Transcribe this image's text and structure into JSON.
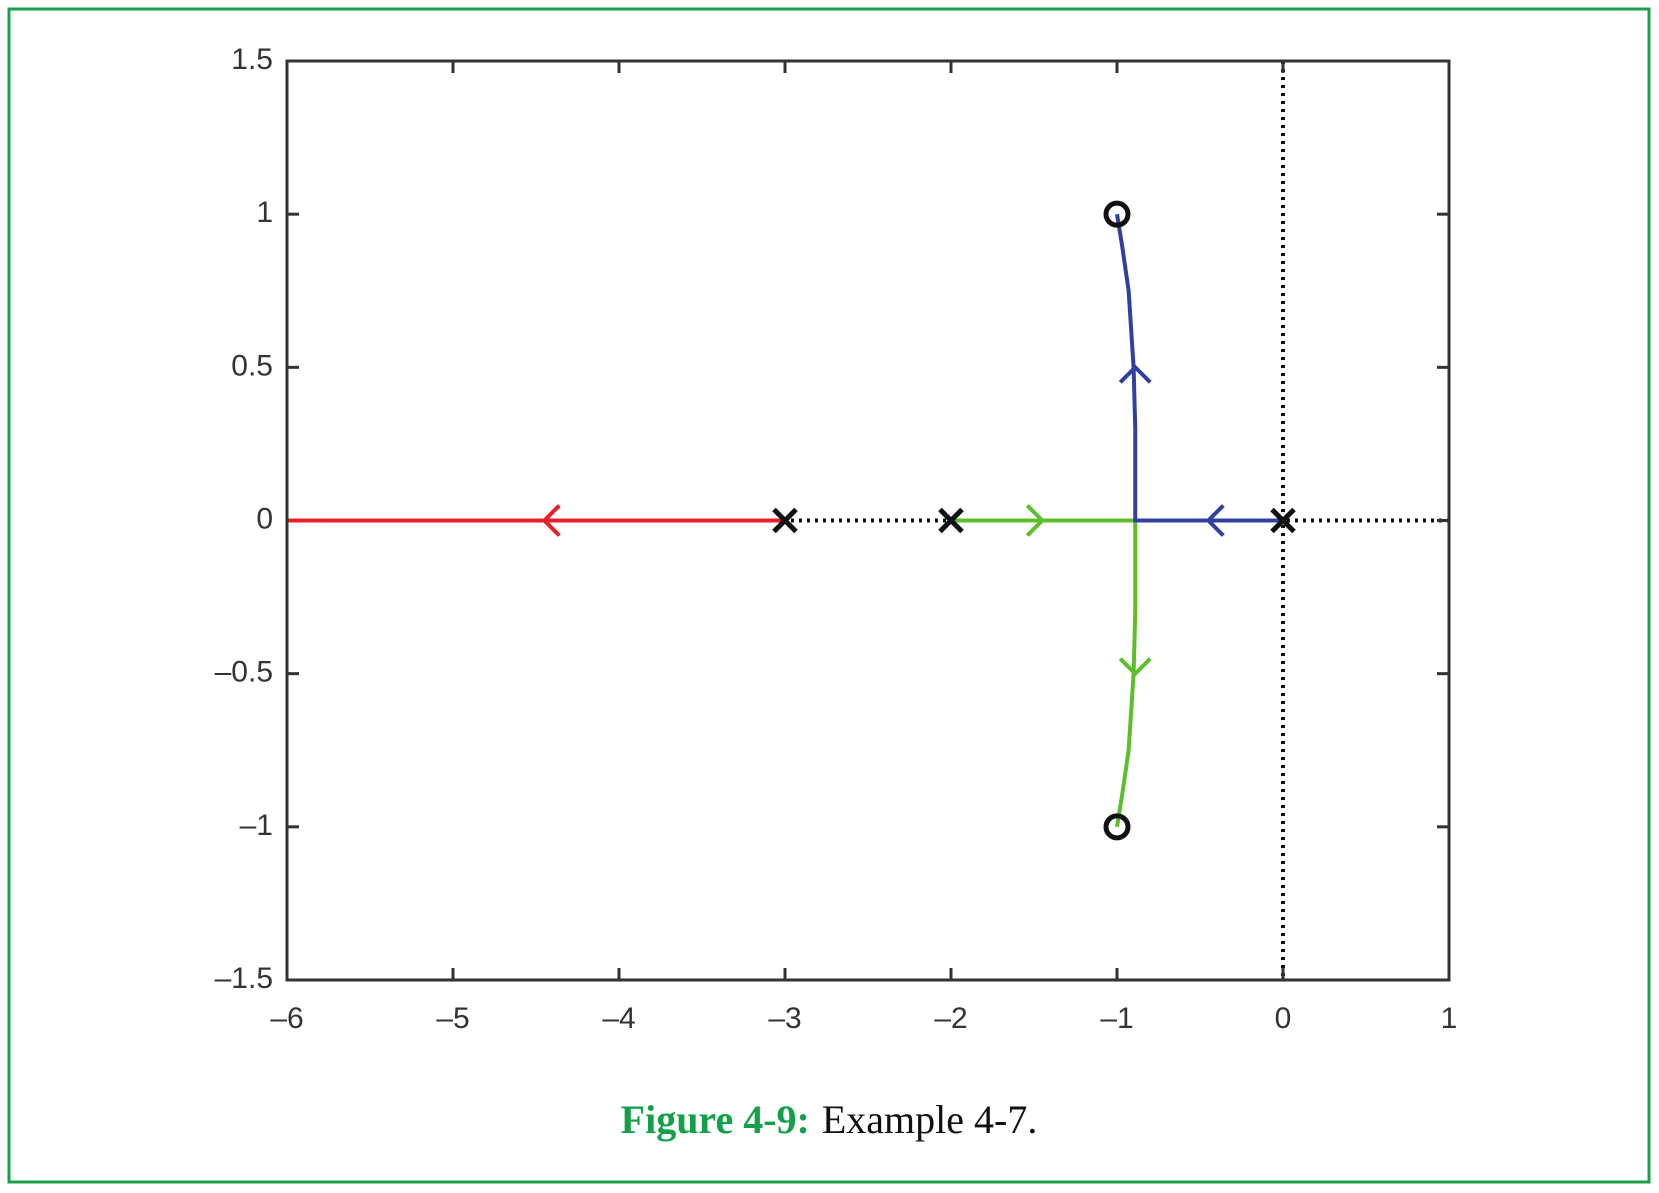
{
  "chart_data": {
    "type": "root-locus",
    "caption_label": "Figure 4-9:",
    "caption": "Example 4-7.",
    "xlim": [
      -6,
      1
    ],
    "ylim": [
      -1.5,
      1.5
    ],
    "xticks": [
      {
        "value": -6,
        "label": "–6"
      },
      {
        "value": -5,
        "label": "–5"
      },
      {
        "value": -4,
        "label": "–4"
      },
      {
        "value": -3,
        "label": "–3"
      },
      {
        "value": -2,
        "label": "–2"
      },
      {
        "value": -1,
        "label": "–1"
      },
      0,
      1
    ],
    "yticks": [
      {
        "value": -1.5,
        "label": "–1.5"
      },
      {
        "value": -1,
        "label": "–1"
      },
      {
        "value": -0.5,
        "label": "–0.5"
      },
      0,
      0.5,
      1,
      1.5
    ],
    "zero_lines": true,
    "series": [
      {
        "color": "#e8202a",
        "x": [
          -3,
          -6
        ],
        "y": [
          0,
          0
        ],
        "arrows": [
          {
            "x": -4.45,
            "y": 0,
            "direction": "left"
          }
        ]
      },
      {
        "color": "#5cbf2a",
        "x": [
          -2,
          -0.89,
          -0.89,
          -0.9,
          -0.93,
          -0.97,
          -1
        ],
        "y": [
          0,
          0,
          -0.3,
          -0.5,
          -0.75,
          -0.9,
          -1
        ],
        "arrows": [
          {
            "x": -1.45,
            "y": 0,
            "direction": "right"
          },
          {
            "x": -0.89,
            "y": -0.5,
            "direction": "down"
          }
        ]
      },
      {
        "color": "#3040a0",
        "x": [
          0,
          -0.89,
          -0.89,
          -0.9,
          -0.93,
          -0.97,
          -1
        ],
        "y": [
          0,
          0,
          0.3,
          0.5,
          0.75,
          0.9,
          1
        ],
        "arrows": [
          {
            "x": -0.45,
            "y": 0,
            "direction": "left"
          },
          {
            "x": -0.89,
            "y": 0.5,
            "direction": "up"
          }
        ]
      }
    ],
    "poles": {
      "x": [
        -3,
        -2,
        0
      ],
      "y": [
        0,
        0,
        0
      ]
    },
    "zeros": {
      "x": [
        -1,
        -1
      ],
      "y": [
        1,
        -1
      ]
    }
  }
}
